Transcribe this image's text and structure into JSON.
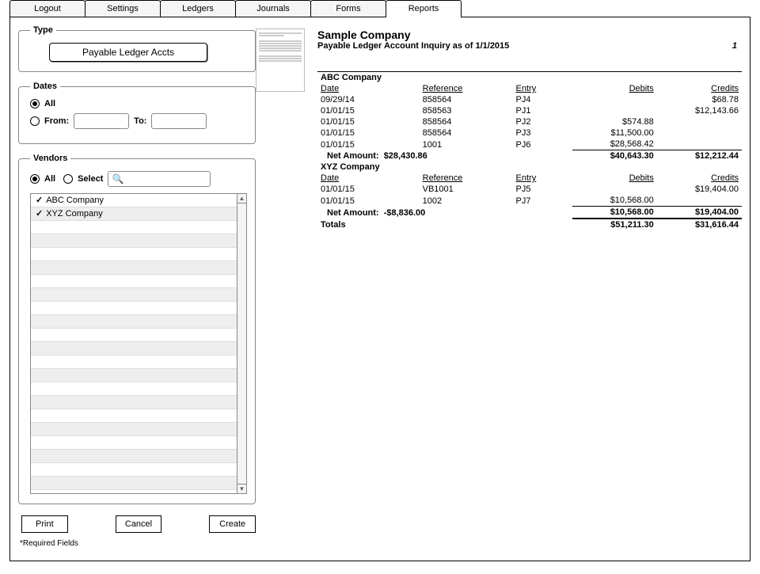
{
  "tabs": [
    "Logout",
    "Settings",
    "Ledgers",
    "Journals",
    "Forms",
    "Reports"
  ],
  "active_tab_index": 5,
  "type": {
    "legend": "Type",
    "button_label": "Payable Ledger Accts"
  },
  "dates": {
    "legend": "Dates",
    "all_label": "All",
    "from_label": "From:",
    "to_label": "To:",
    "mode": "all",
    "from_value": "",
    "to_value": ""
  },
  "vendors": {
    "legend": "Vendors",
    "all_label": "All",
    "select_label": "Select",
    "mode": "all",
    "search_value": "",
    "list": [
      {
        "checked": true,
        "name": "ABC Company"
      },
      {
        "checked": true,
        "name": "XYZ Company"
      }
    ],
    "blank_rows": 20
  },
  "buttons": {
    "print": "Print",
    "cancel": "Cancel",
    "create": "Create"
  },
  "required_note": "*Required Fields",
  "report": {
    "company": "Sample Company",
    "subtitle": "Payable Ledger Account Inquiry as of  1/1/2015",
    "page": "1",
    "col_headers": {
      "date": "Date",
      "ref": "Reference",
      "entry": "Entry",
      "debits": "Debits",
      "credits": "Credits"
    },
    "sections": [
      {
        "name": "ABC Company",
        "rows": [
          {
            "date": "09/29/14",
            "ref": "858564",
            "entry": "PJ4",
            "debits": "",
            "credits": "$68.78"
          },
          {
            "date": "01/01/15",
            "ref": "858563",
            "entry": "PJ1",
            "debits": "",
            "credits": "$12,143.66"
          },
          {
            "date": "01/01/15",
            "ref": "858564",
            "entry": "PJ2",
            "debits": "$574.88",
            "credits": ""
          },
          {
            "date": "01/01/15",
            "ref": "858564",
            "entry": "PJ3",
            "debits": "$11,500.00",
            "credits": ""
          },
          {
            "date": "01/01/15",
            "ref": "1001",
            "entry": "PJ6",
            "debits": "$28,568.42",
            "credits": ""
          }
        ],
        "net_label": "Net Amount:",
        "net": "$28,430.86",
        "sub_debits": "$40,643.30",
        "sub_credits": "$12,212.44"
      },
      {
        "name": "XYZ Company",
        "rows": [
          {
            "date": "01/01/15",
            "ref": "VB1001",
            "entry": "PJ5",
            "debits": "",
            "credits": "$19,404.00"
          },
          {
            "date": "01/01/15",
            "ref": "1002",
            "entry": "PJ7",
            "debits": "$10,568.00",
            "credits": ""
          }
        ],
        "net_label": "Net Amount:",
        "net": "-$8,836.00",
        "sub_debits": "$10,568.00",
        "sub_credits": "$19,404.00"
      }
    ],
    "totals": {
      "label": "Totals",
      "debits": "$51,211.30",
      "credits": "$31,616.44"
    }
  }
}
